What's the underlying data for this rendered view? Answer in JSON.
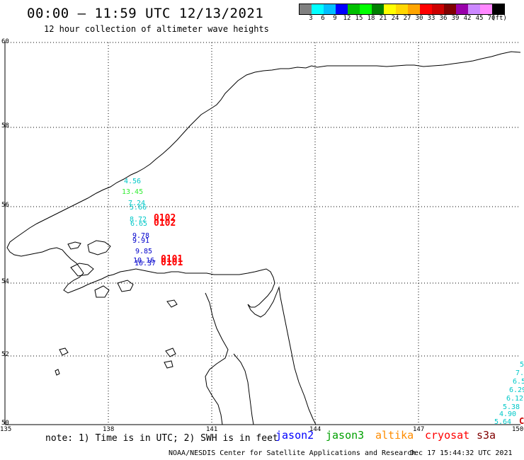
{
  "title": "00:00 – 11:59 UTC 12/13/2021",
  "subtitle": "12 hour collection of altimeter wave heights",
  "scale": {
    "colors": [
      "#808080",
      "#00ffff",
      "#00bfff",
      "#0000ff",
      "#00c000",
      "#00ff00",
      "#008000",
      "#ffff00",
      "#ffd700",
      "#ffa500",
      "#ff0000",
      "#cc0000",
      "#800000",
      "#9900aa",
      "#cc88ff",
      "#ff88ff",
      "#000000"
    ],
    "labels": [
      "3",
      "6",
      "9",
      "12",
      "15",
      "18",
      "21",
      "24",
      "27",
      "30",
      "33",
      "36",
      "39",
      "42",
      "45",
      "70",
      "(ft)"
    ]
  },
  "axes": {
    "lat_labels": [
      "60",
      "58",
      "56",
      "54",
      "52",
      "50"
    ],
    "lon_labels": [
      "135",
      "138",
      "141",
      "144",
      "147",
      "150"
    ]
  },
  "observations": [
    {
      "text": "4.56",
      "color": "#00c8c8"
    },
    {
      "text": "13.45",
      "color": "#33ee33"
    },
    {
      "text": "7.24",
      "color": "#00c8c8"
    },
    {
      "text": "5.66",
      "color": "#00c8c8"
    },
    {
      "text": "8.72",
      "color": "#00c8c8"
    },
    {
      "text": "6.65",
      "color": "#00c8c8"
    },
    {
      "text": "0102",
      "color": "#ff0000"
    },
    {
      "text": "0102",
      "color": "#ff0000"
    },
    {
      "text": "9.78",
      "color": "#0000cc"
    },
    {
      "text": "9.91",
      "color": "#0000cc"
    },
    {
      "text": "9.85",
      "color": "#0000cc"
    },
    {
      "text": "10.16",
      "color": "#0000cc"
    },
    {
      "text": "10.37",
      "color": "#0000cc"
    },
    {
      "text": "0101",
      "color": "#ff0000"
    },
    {
      "text": "0101",
      "color": "#ff0000"
    },
    {
      "text": "5",
      "color": "#00c8c8"
    },
    {
      "text": "7.",
      "color": "#00c8c8"
    },
    {
      "text": "6.5",
      "color": "#00c8c8"
    },
    {
      "text": "6.29",
      "color": "#00c8c8"
    },
    {
      "text": "6.12",
      "color": "#00c8c8"
    },
    {
      "text": "5.38",
      "color": "#00c8c8"
    },
    {
      "text": "4.90",
      "color": "#00c8c8"
    },
    {
      "text": "5.64",
      "color": "#00c8c8"
    },
    {
      "text": "C",
      "color": "#cc0000"
    }
  ],
  "note": "note: 1) Time is in UTC; 2) SWH is in feet",
  "satellites": [
    {
      "name": "jason2",
      "color": "#0000ff"
    },
    {
      "name": "jason3",
      "color": "#00a000"
    },
    {
      "name": "altika",
      "color": "#ff8c00"
    },
    {
      "name": "cryosat",
      "color": "#ff0000"
    },
    {
      "name": "s3a",
      "color": "#800000"
    }
  ],
  "footer": "NOAA/NESDIS Center for Satellite Applications and Research",
  "timestamp": "Dec 17 15:44:32 UTC 2021"
}
